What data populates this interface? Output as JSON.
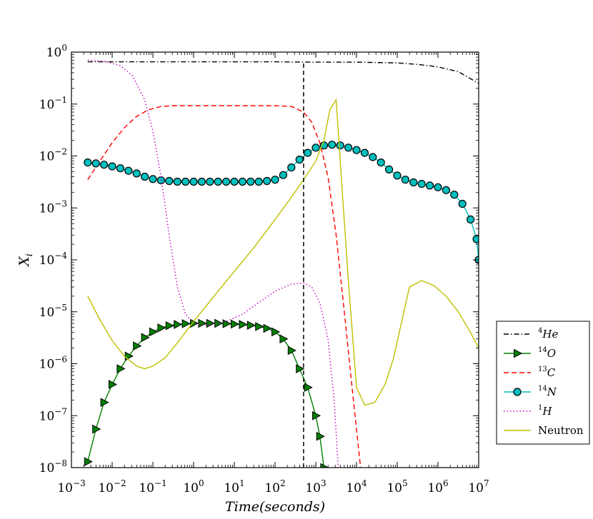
{
  "chart_data": {
    "type": "line",
    "title": "",
    "xlabel": "Time(seconds)",
    "ylabel": "X_i",
    "xscale": "log",
    "yscale": "log",
    "xlim_exp": [
      -3,
      7
    ],
    "ylim_exp": [
      -8,
      0
    ],
    "x_tick_labels": [
      "10^-3",
      "10^-2",
      "10^-1",
      "10^0",
      "10^1",
      "10^2",
      "10^3",
      "10^4",
      "10^5",
      "10^6",
      "10^7"
    ],
    "y_tick_labels": [
      "10^-8",
      "10^-7",
      "10^-6",
      "10^-5",
      "10^-4",
      "10^-3",
      "10^-2",
      "10^-1",
      "10^0"
    ],
    "vline_x_exp": 2.7,
    "legend_position": "right-bottom",
    "series": [
      {
        "name": "4He",
        "iso_mass": "4",
        "iso_sym": "He",
        "color": "#000000",
        "style": "dashdot",
        "marker": "none",
        "points": [
          [
            -2.6,
            0.65
          ],
          [
            -1,
            0.65
          ],
          [
            0,
            0.65
          ],
          [
            1,
            0.65
          ],
          [
            2,
            0.65
          ],
          [
            3,
            0.64
          ],
          [
            4,
            0.64
          ],
          [
            5,
            0.62
          ],
          [
            5.5,
            0.58
          ],
          [
            6,
            0.52
          ],
          [
            6.5,
            0.42
          ],
          [
            7,
            0.25
          ]
        ]
      },
      {
        "name": "14O",
        "iso_mass": "14",
        "iso_sym": "O",
        "color": "#008000",
        "style": "solid",
        "marker": "triangle",
        "points": [
          [
            -2.6,
            1.3e-08
          ],
          [
            -2.4,
            5.5e-08
          ],
          [
            -2.2,
            1.8e-07
          ],
          [
            -2,
            4e-07
          ],
          [
            -1.8,
            8e-07
          ],
          [
            -1.6,
            1.4e-06
          ],
          [
            -1.4,
            2.2e-06
          ],
          [
            -1.2,
            3.2e-06
          ],
          [
            -1,
            4.1e-06
          ],
          [
            -0.8,
            4.9e-06
          ],
          [
            -0.6,
            5.4e-06
          ],
          [
            -0.4,
            5.7e-06
          ],
          [
            -0.2,
            5.9e-06
          ],
          [
            0,
            6e-06
          ],
          [
            0.2,
            6e-06
          ],
          [
            0.4,
            6e-06
          ],
          [
            0.6,
            6e-06
          ],
          [
            0.8,
            5.9e-06
          ],
          [
            1,
            5.8e-06
          ],
          [
            1.2,
            5.7e-06
          ],
          [
            1.4,
            5.5e-06
          ],
          [
            1.6,
            5.2e-06
          ],
          [
            1.8,
            4.8e-06
          ],
          [
            2,
            4.1e-06
          ],
          [
            2.2,
            3e-06
          ],
          [
            2.4,
            1.8e-06
          ],
          [
            2.6,
            8e-07
          ],
          [
            2.8,
            3.5e-07
          ],
          [
            3,
            1e-07
          ],
          [
            3.1,
            4e-08
          ],
          [
            3.2,
            1e-08
          ]
        ]
      },
      {
        "name": "13C",
        "iso_mass": "13",
        "iso_sym": "C",
        "color": "#ff0000",
        "style": "dashed",
        "marker": "none",
        "points": [
          [
            -2.6,
            0.0035
          ],
          [
            -2.3,
            0.008
          ],
          [
            -2,
            0.018
          ],
          [
            -1.7,
            0.035
          ],
          [
            -1.4,
            0.058
          ],
          [
            -1.1,
            0.078
          ],
          [
            -0.8,
            0.09
          ],
          [
            -0.5,
            0.093
          ],
          [
            0,
            0.093
          ],
          [
            1,
            0.093
          ],
          [
            2,
            0.093
          ],
          [
            2.4,
            0.09
          ],
          [
            2.7,
            0.07
          ],
          [
            2.9,
            0.045
          ],
          [
            3.1,
            0.018
          ],
          [
            3.3,
            0.004
          ],
          [
            3.5,
            0.0003
          ],
          [
            3.7,
            1e-05
          ],
          [
            3.9,
            3e-07
          ],
          [
            4.1,
            1e-08
          ]
        ]
      },
      {
        "name": "14N",
        "iso_mass": "14",
        "iso_sym": "N",
        "color": "#00bfbf",
        "style": "solid",
        "marker": "circle",
        "points": [
          [
            -2.6,
            0.0075
          ],
          [
            -2.4,
            0.0072
          ],
          [
            -2.2,
            0.0068
          ],
          [
            -2,
            0.0063
          ],
          [
            -1.8,
            0.0058
          ],
          [
            -1.6,
            0.0052
          ],
          [
            -1.4,
            0.0046
          ],
          [
            -1.2,
            0.004
          ],
          [
            -1,
            0.0036
          ],
          [
            -0.8,
            0.0034
          ],
          [
            -0.6,
            0.0033
          ],
          [
            -0.4,
            0.0032
          ],
          [
            -0.2,
            0.0032
          ],
          [
            0,
            0.0032
          ],
          [
            0.2,
            0.0032
          ],
          [
            0.4,
            0.0032
          ],
          [
            0.6,
            0.0032
          ],
          [
            0.8,
            0.0032
          ],
          [
            1,
            0.0032
          ],
          [
            1.2,
            0.0032
          ],
          [
            1.4,
            0.0032
          ],
          [
            1.6,
            0.0032
          ],
          [
            1.8,
            0.0033
          ],
          [
            2,
            0.0035
          ],
          [
            2.2,
            0.0043
          ],
          [
            2.4,
            0.006
          ],
          [
            2.6,
            0.0085
          ],
          [
            2.8,
            0.0115
          ],
          [
            3,
            0.0145
          ],
          [
            3.2,
            0.016
          ],
          [
            3.4,
            0.0165
          ],
          [
            3.6,
            0.016
          ],
          [
            3.8,
            0.0145
          ],
          [
            4,
            0.013
          ],
          [
            4.2,
            0.0115
          ],
          [
            4.4,
            0.0095
          ],
          [
            4.6,
            0.0075
          ],
          [
            4.8,
            0.0055
          ],
          [
            5,
            0.0042
          ],
          [
            5.2,
            0.0035
          ],
          [
            5.4,
            0.0031
          ],
          [
            5.6,
            0.0029
          ],
          [
            5.8,
            0.0027
          ],
          [
            6,
            0.0025
          ],
          [
            6.2,
            0.0022
          ],
          [
            6.4,
            0.0018
          ],
          [
            6.6,
            0.0012
          ],
          [
            6.8,
            0.0006
          ],
          [
            6.95,
            0.00025
          ],
          [
            7,
            0.0001
          ]
        ]
      },
      {
        "name": "1H",
        "iso_mass": "1",
        "iso_sym": "H",
        "color": "#bf00bf",
        "style": "dotted",
        "marker": "none",
        "points": [
          [
            -2.6,
            0.7
          ],
          [
            -2.2,
            0.67
          ],
          [
            -1.8,
            0.55
          ],
          [
            -1.5,
            0.35
          ],
          [
            -1.2,
            0.12
          ],
          [
            -1,
            0.03
          ],
          [
            -0.8,
            0.004
          ],
          [
            -0.6,
            0.0003
          ],
          [
            -0.4,
            3e-05
          ],
          [
            -0.2,
            9e-06
          ],
          [
            0,
            6e-06
          ],
          [
            0.4,
            5.5e-06
          ],
          [
            0.8,
            6.5e-06
          ],
          [
            1.2,
            9e-06
          ],
          [
            1.6,
            1.5e-05
          ],
          [
            2,
            2.5e-05
          ],
          [
            2.4,
            3.4e-05
          ],
          [
            2.7,
            3.6e-05
          ],
          [
            2.9,
            3e-05
          ],
          [
            3.1,
            1.5e-05
          ],
          [
            3.3,
            3e-06
          ],
          [
            3.45,
            2e-07
          ],
          [
            3.55,
            1e-08
          ]
        ]
      },
      {
        "name": "Neutron",
        "iso_mass": "",
        "iso_sym": "Neutron",
        "color": "#bfbf00",
        "style": "solid",
        "marker": "none",
        "points": [
          [
            -2.6,
            2e-05
          ],
          [
            -2.3,
            7e-06
          ],
          [
            -2,
            2.8e-06
          ],
          [
            -1.7,
            1.4e-06
          ],
          [
            -1.4,
            9e-07
          ],
          [
            -1.2,
            8e-07
          ],
          [
            -1,
            9e-07
          ],
          [
            -0.7,
            1.3e-06
          ],
          [
            -0.4,
            2.5e-06
          ],
          [
            0,
            6.5e-06
          ],
          [
            0.5,
            2e-05
          ],
          [
            1,
            6e-05
          ],
          [
            1.5,
            0.00018
          ],
          [
            2,
            0.0006
          ],
          [
            2.4,
            0.0016
          ],
          [
            2.7,
            0.0035
          ],
          [
            3,
            0.008
          ],
          [
            3.2,
            0.02
          ],
          [
            3.35,
            0.08
          ],
          [
            3.5,
            0.12
          ],
          [
            3.65,
            0.002
          ],
          [
            3.8,
            4e-05
          ],
          [
            4,
            3.5e-07
          ],
          [
            4.2,
            1.6e-07
          ],
          [
            4.45,
            1.8e-07
          ],
          [
            4.7,
            4e-07
          ],
          [
            4.9,
            1.2e-06
          ],
          [
            5.1,
            6e-06
          ],
          [
            5.3,
            3e-05
          ],
          [
            5.6,
            4e-05
          ],
          [
            5.9,
            3.2e-05
          ],
          [
            6.2,
            2e-05
          ],
          [
            6.5,
            1e-05
          ],
          [
            6.8,
            4e-06
          ],
          [
            7,
            2e-06
          ]
        ]
      }
    ]
  }
}
